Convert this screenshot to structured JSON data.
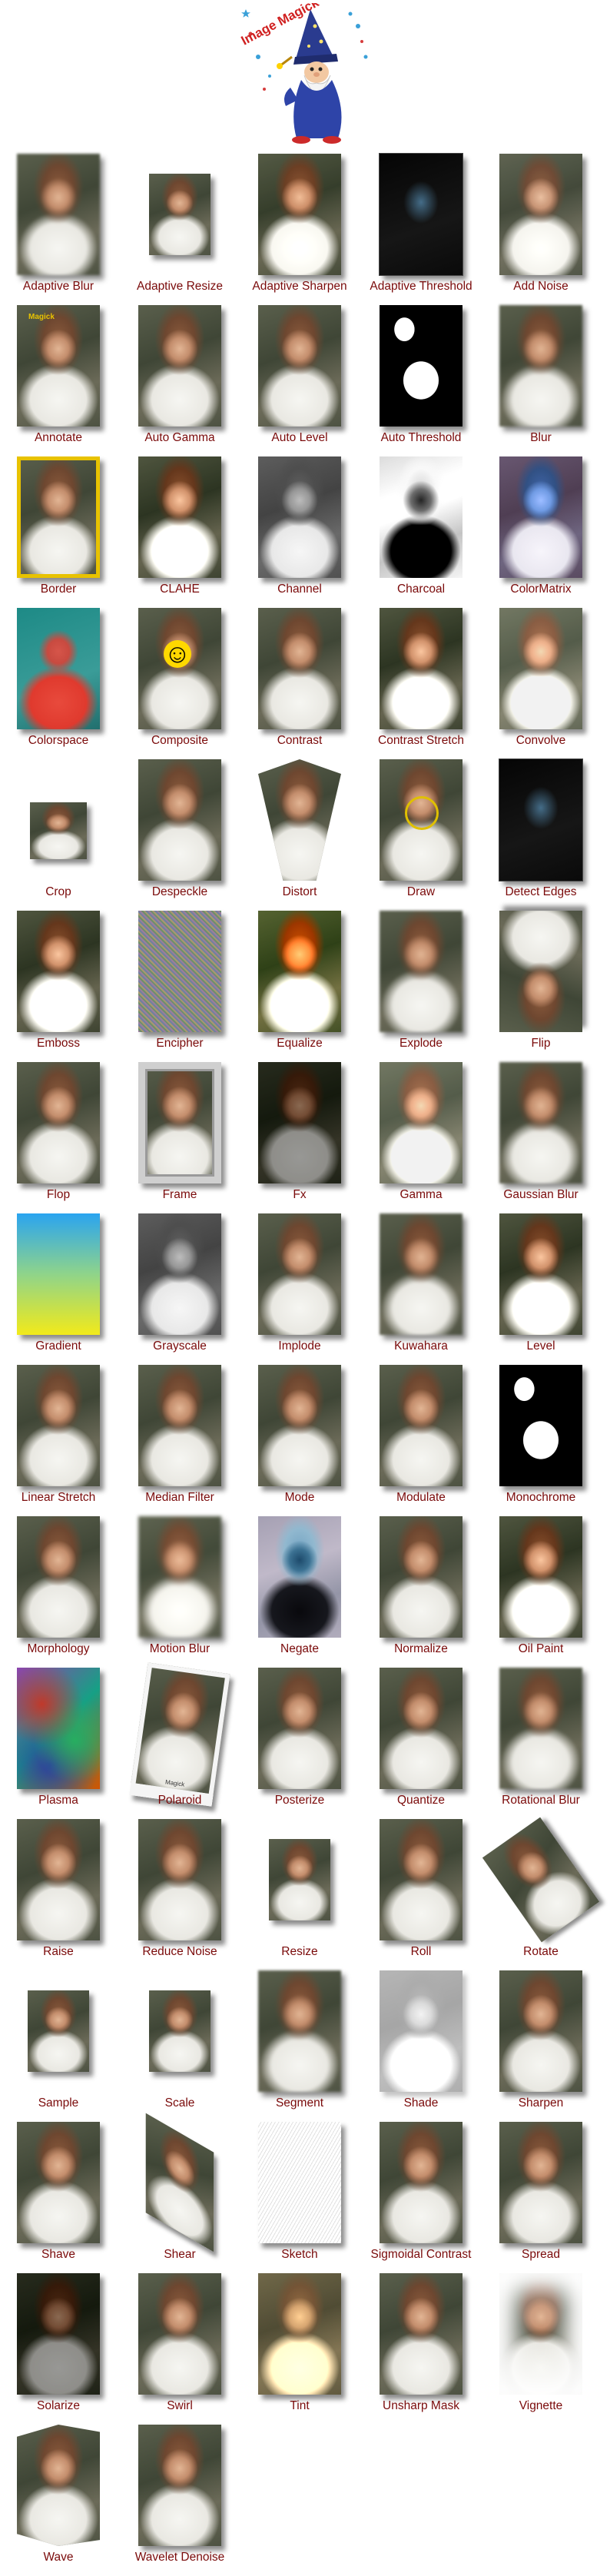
{
  "logo": {
    "text": "Image Magick"
  },
  "items": [
    {
      "label": "Adaptive Blur",
      "effect": "blur"
    },
    {
      "label": "Adaptive Resize",
      "effect": "small"
    },
    {
      "label": "Adaptive Sharpen",
      "effect": "sharp"
    },
    {
      "label": "Adaptive Threshold",
      "effect": "edges"
    },
    {
      "label": "Add Noise",
      "effect": "noise-light"
    },
    {
      "label": "Annotate",
      "effect": "annotate",
      "overlay_text": "Magick"
    },
    {
      "label": "Auto Gamma",
      "effect": "normal"
    },
    {
      "label": "Auto Level",
      "effect": "normal"
    },
    {
      "label": "Auto Threshold",
      "effect": "threshold"
    },
    {
      "label": "Blur",
      "effect": "blur"
    },
    {
      "label": "Border",
      "effect": "border"
    },
    {
      "label": "CLAHE",
      "effect": "contrast"
    },
    {
      "label": "Channel",
      "effect": "gray"
    },
    {
      "label": "Charcoal",
      "effect": "charcoal"
    },
    {
      "label": "ColorMatrix",
      "effect": "colormatrix"
    },
    {
      "label": "Colorspace",
      "effect": "colorspace"
    },
    {
      "label": "Composite",
      "effect": "smiley"
    },
    {
      "label": "Contrast",
      "effect": "normal"
    },
    {
      "label": "Contrast Stretch",
      "effect": "contrast"
    },
    {
      "label": "Convolve",
      "effect": "light"
    },
    {
      "label": "Crop",
      "effect": "crop"
    },
    {
      "label": "Despeckle",
      "effect": "normal"
    },
    {
      "label": "Distort",
      "effect": "distort"
    },
    {
      "label": "Draw",
      "effect": "draw"
    },
    {
      "label": "Detect Edges",
      "effect": "edges"
    },
    {
      "label": "Emboss",
      "effect": "contrast"
    },
    {
      "label": "Encipher",
      "effect": "encipher"
    },
    {
      "label": "Equalize",
      "effect": "equalize"
    },
    {
      "label": "Explode",
      "effect": "blur"
    },
    {
      "label": "Flip",
      "effect": "flip"
    },
    {
      "label": "Flop",
      "effect": "normal"
    },
    {
      "label": "Frame",
      "effect": "frame"
    },
    {
      "label": "Fx",
      "effect": "dark"
    },
    {
      "label": "Gamma",
      "effect": "light"
    },
    {
      "label": "Gaussian Blur",
      "effect": "blur"
    },
    {
      "label": "Gradient",
      "effect": "gradient"
    },
    {
      "label": "Grayscale",
      "effect": "gray"
    },
    {
      "label": "Implode",
      "effect": "normal"
    },
    {
      "label": "Kuwahara",
      "effect": "blur"
    },
    {
      "label": "Level",
      "effect": "contrast"
    },
    {
      "label": "Linear Stretch",
      "effect": "normal"
    },
    {
      "label": "Median Filter",
      "effect": "normal"
    },
    {
      "label": "Mode",
      "effect": "normal"
    },
    {
      "label": "Modulate",
      "effect": "normal"
    },
    {
      "label": "Monochrome",
      "effect": "threshold"
    },
    {
      "label": "Morphology",
      "effect": "normal"
    },
    {
      "label": "Motion Blur",
      "effect": "motionblur"
    },
    {
      "label": "Negate",
      "effect": "negate"
    },
    {
      "label": "Normalize",
      "effect": "normal"
    },
    {
      "label": "Oil Paint",
      "effect": "contrast"
    },
    {
      "label": "Plasma",
      "effect": "plasma"
    },
    {
      "label": "Polaroid",
      "effect": "polaroid",
      "overlay_text": "Magick"
    },
    {
      "label": "Posterize",
      "effect": "normal"
    },
    {
      "label": "Quantize",
      "effect": "normal"
    },
    {
      "label": "Rotational Blur",
      "effect": "blur"
    },
    {
      "label": "Raise",
      "effect": "normal"
    },
    {
      "label": "Reduce Noise",
      "effect": "normal"
    },
    {
      "label": "Resize",
      "effect": "small"
    },
    {
      "label": "Roll",
      "effect": "normal"
    },
    {
      "label": "Rotate",
      "effect": "rotate"
    },
    {
      "label": "Sample",
      "effect": "small"
    },
    {
      "label": "Scale",
      "effect": "small"
    },
    {
      "label": "Segment",
      "effect": "blur"
    },
    {
      "label": "Shade",
      "effect": "shade"
    },
    {
      "label": "Sharpen",
      "effect": "normal"
    },
    {
      "label": "Shave",
      "effect": "normal"
    },
    {
      "label": "Shear",
      "effect": "shear"
    },
    {
      "label": "Sketch",
      "effect": "sketch"
    },
    {
      "label": "Sigmoidal Contrast",
      "effect": "normal"
    },
    {
      "label": "Spread",
      "effect": "normal"
    },
    {
      "label": "Solarize",
      "effect": "dark"
    },
    {
      "label": "Swirl",
      "effect": "normal"
    },
    {
      "label": "Tint",
      "effect": "warm"
    },
    {
      "label": "Unsharp Mask",
      "effect": "normal"
    },
    {
      "label": "Vignette",
      "effect": "vignette"
    },
    {
      "label": "Wave",
      "effect": "wave"
    },
    {
      "label": "Wavelet Denoise",
      "effect": "normal"
    }
  ],
  "colors": {
    "caption": "#7a0a0a",
    "border_gold": "#e8c200",
    "background": "#ffffff"
  }
}
